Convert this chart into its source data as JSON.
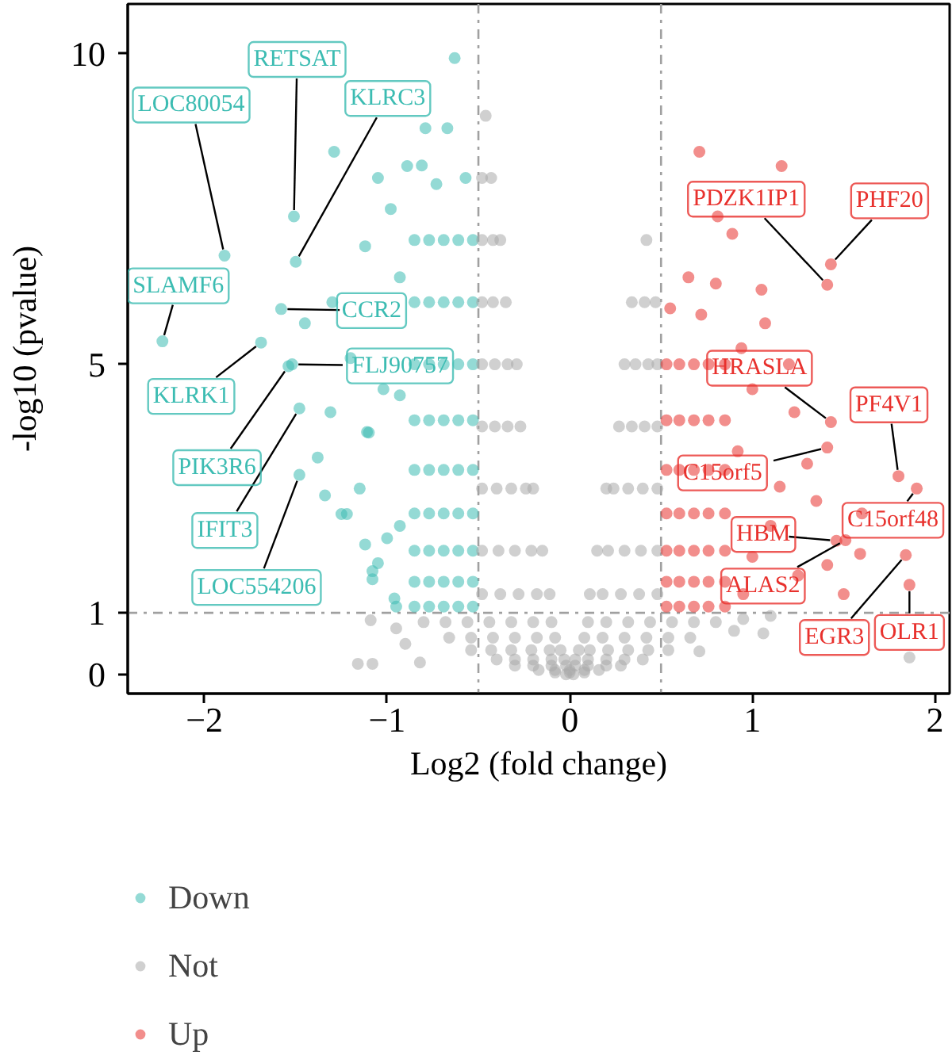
{
  "chart_data": {
    "type": "scatter",
    "xlabel": "Log2 (fold change)",
    "ylabel": "-log10 (pvalue)",
    "xlim": [
      -2.42,
      2.08
    ],
    "xticks": [
      -2,
      -1,
      0,
      1,
      2
    ],
    "ylim": [
      -0.3,
      10.8
    ],
    "yticks": [
      0,
      1,
      5,
      10
    ],
    "marker": "circle",
    "legend": "bottom left",
    "ref_lines": [
      {
        "axis": "x",
        "value": -0.5,
        "color": "#a0a0a0",
        "line_style": "dashdot"
      },
      {
        "axis": "x",
        "value": 0.5,
        "color": "#a0a0a0",
        "line_style": "dashdot"
      },
      {
        "axis": "y",
        "value": 1,
        "color": "#a0a0a0",
        "line_style": "dashdot"
      }
    ],
    "series": [
      {
        "name": "Down",
        "color": "#3cbcb2",
        "x": [
          -1.89,
          -1.58,
          -1.51,
          -1.5,
          -1.69,
          -2.23,
          -1.52,
          -1.54,
          -1.48,
          -1.48,
          -1.29,
          -1.05,
          -1.45,
          -1.31,
          -1.22,
          -1.08,
          -0.96,
          -0.63,
          -0.79,
          -0.67,
          -0.89,
          -1.12,
          -1.2,
          -1.1,
          -1.15,
          -1.0,
          -1.3,
          -1.02,
          -1.12,
          -0.98,
          -1.38,
          -1.05,
          -0.95,
          -1.34,
          -1.25,
          -1.08,
          -1.11,
          -0.53,
          -0.53,
          -0.53,
          -0.53,
          -0.53,
          -0.53,
          -0.53,
          -0.53,
          -0.53,
          -0.61,
          -0.61,
          -0.61,
          -0.61,
          -0.61,
          -0.61,
          -0.61,
          -0.61,
          -0.61,
          -0.69,
          -0.69,
          -0.69,
          -0.69,
          -0.69,
          -0.69,
          -0.69,
          -0.69,
          -0.69,
          -0.77,
          -0.77,
          -0.77,
          -0.77,
          -0.77,
          -0.77,
          -0.77,
          -0.77,
          -0.77,
          -0.85,
          -0.85,
          -0.85,
          -0.85,
          -0.85,
          -0.85,
          -0.85,
          -0.85,
          -0.85,
          -0.93,
          -0.93,
          -0.93,
          -0.57,
          -0.73,
          -0.81
        ],
        "values": [
          6.75,
          5.89,
          7.38,
          6.65,
          5.35,
          5.37,
          5.0,
          4.97,
          4.29,
          3.22,
          8.42,
          8.0,
          5.66,
          4.23,
          2.59,
          1.54,
          1.23,
          9.93,
          8.8,
          8.8,
          8.19,
          6.9,
          5.1,
          3.9,
          3.0,
          2.2,
          6.0,
          4.6,
          2.1,
          7.5,
          3.5,
          1.8,
          1.1,
          2.89,
          2.59,
          1.67,
          3.91,
          1.1,
          1.5,
          2.0,
          2.6,
          3.3,
          4.1,
          5.0,
          6.0,
          7.0,
          1.1,
          1.5,
          2.0,
          2.6,
          3.3,
          4.1,
          5.0,
          6.0,
          7.0,
          1.1,
          1.5,
          2.0,
          2.6,
          3.3,
          4.1,
          5.0,
          6.0,
          7.0,
          1.1,
          1.5,
          2.0,
          2.6,
          3.3,
          4.1,
          5.0,
          6.0,
          7.0,
          1.1,
          1.5,
          2.0,
          2.6,
          3.3,
          4.1,
          5.0,
          6.0,
          7.0,
          2.4,
          4.5,
          6.4,
          8.0,
          7.9,
          8.2
        ]
      },
      {
        "name": "Not",
        "color": "#a9a9a9",
        "x": [
          -0.02,
          0.02,
          -0.08,
          0,
          0.08,
          -0.17,
          -0.08,
          0,
          0.08,
          0.16,
          -0.3,
          -0.2,
          -0.1,
          -0.02,
          0.03,
          0.1,
          0.2,
          0.28,
          -0.4,
          -0.3,
          -0.2,
          -0.1,
          -0.03,
          0.03,
          0.1,
          0.2,
          0.3,
          0.4,
          -0.54,
          -0.43,
          -0.32,
          -0.21,
          -0.11,
          -0.05,
          0.05,
          0.11,
          0.21,
          0.32,
          0.43,
          0.54,
          -0.66,
          -0.54,
          -0.42,
          -0.3,
          -0.18,
          -0.08,
          0.08,
          0.18,
          0.3,
          0.42,
          0.54,
          0.66,
          -0.8,
          -0.68,
          -0.56,
          -0.44,
          -0.32,
          -0.2,
          -0.1,
          0.1,
          0.2,
          0.32,
          0.44,
          0.56,
          0.68,
          0.8,
          -1.09,
          -0.95,
          -1.16,
          -1.08,
          -0.82,
          -0.9,
          0.9,
          1.06,
          0.95,
          1.86,
          1.1,
          0.71,
          -0.48,
          -0.38,
          -0.28,
          -0.18,
          -0.11,
          0.11,
          0.18,
          0.28,
          0.38,
          0.48,
          -0.48,
          -0.39,
          -0.3,
          -0.21,
          -0.15,
          0.15,
          0.21,
          0.3,
          0.39,
          0.48,
          -0.48,
          -0.4,
          -0.32,
          -0.24,
          -0.2,
          0.2,
          0.24,
          0.32,
          0.4,
          0.48,
          -0.48,
          -0.41,
          -0.34,
          -0.27,
          0.27,
          0.34,
          0.41,
          0.48,
          -0.48,
          -0.41,
          -0.34,
          -0.29,
          0.3,
          0.36,
          0.43,
          0.48,
          -0.48,
          -0.42,
          -0.35,
          0.34,
          0.41,
          0.47,
          -0.48,
          -0.42,
          -0.38,
          0.42,
          -0.48,
          -0.43,
          -0.46
        ],
        "values": [
          0.01,
          0.01,
          0.04,
          0.04,
          0.04,
          0.08,
          0.08,
          0.08,
          0.08,
          0.08,
          0.15,
          0.15,
          0.15,
          0.15,
          0.15,
          0.15,
          0.15,
          0.15,
          0.25,
          0.25,
          0.25,
          0.25,
          0.25,
          0.25,
          0.25,
          0.25,
          0.25,
          0.25,
          0.4,
          0.4,
          0.4,
          0.4,
          0.4,
          0.4,
          0.4,
          0.4,
          0.4,
          0.4,
          0.4,
          0.4,
          0.6,
          0.6,
          0.6,
          0.6,
          0.6,
          0.6,
          0.6,
          0.6,
          0.6,
          0.6,
          0.6,
          0.6,
          0.85,
          0.85,
          0.85,
          0.85,
          0.85,
          0.85,
          0.85,
          0.85,
          0.85,
          0.85,
          0.85,
          0.85,
          0.85,
          0.85,
          0.88,
          0.75,
          0.18,
          0.18,
          0.2,
          0.5,
          0.71,
          0.67,
          0.9,
          0.28,
          0.95,
          0.38,
          1.3,
          1.3,
          1.3,
          1.3,
          1.3,
          1.3,
          1.3,
          1.3,
          1.3,
          1.3,
          2,
          2,
          2,
          2,
          2,
          2,
          2,
          2,
          2,
          2,
          3,
          3,
          3,
          3,
          3,
          3,
          3,
          3,
          3,
          3,
          4,
          4,
          4,
          4,
          4,
          4,
          4,
          4,
          5,
          5,
          5,
          5,
          5,
          5,
          5,
          5,
          6,
          6,
          6,
          6,
          6,
          6,
          7,
          7,
          7,
          7,
          8,
          8,
          9
        ]
      },
      {
        "name": "Up",
        "color": "#e8312d",
        "x": [
          1.43,
          1.41,
          1.43,
          1.41,
          1.8,
          1.9,
          1.46,
          1.51,
          1.84,
          1.86,
          0.71,
          1.16,
          0.81,
          0.89,
          1.07,
          0.94,
          1.23,
          1.15,
          1.59,
          1.41,
          1.0,
          1.3,
          1.1,
          1.25,
          0.95,
          1.35,
          1.05,
          1.2,
          0.92,
          1.6,
          1.5,
          1.0,
          0.8,
          0.53,
          0.53,
          0.53,
          0.53,
          0.53,
          0.53,
          0.53,
          0.6,
          0.6,
          0.6,
          0.6,
          0.6,
          0.6,
          0.6,
          0.68,
          0.68,
          0.68,
          0.68,
          0.68,
          0.68,
          0.68,
          0.76,
          0.76,
          0.76,
          0.76,
          0.76,
          0.76,
          0.76,
          0.85,
          0.85,
          0.85,
          0.85,
          0.85,
          0.85,
          0.85,
          0.55,
          0.65,
          0.72
        ],
        "values": [
          6.61,
          6.28,
          4.07,
          3.66,
          3.2,
          3.0,
          2.16,
          2.17,
          1.93,
          1.45,
          8.42,
          8.19,
          7.38,
          7.1,
          5.66,
          5.26,
          4.23,
          3.03,
          1.95,
          1.77,
          4.6,
          3.4,
          2.4,
          1.6,
          1.3,
          2.8,
          6.2,
          5.0,
          3.6,
          2.6,
          1.3,
          1.9,
          6.3,
          1.1,
          1.5,
          2.0,
          2.6,
          3.3,
          4.1,
          5.0,
          1.1,
          1.5,
          2.0,
          2.6,
          3.3,
          4.1,
          5.0,
          1.1,
          1.5,
          2.0,
          2.6,
          3.3,
          4.1,
          5.0,
          1.1,
          1.5,
          2.0,
          2.6,
          3.3,
          4.1,
          5.0,
          1.1,
          1.5,
          2.0,
          2.6,
          3.3,
          4.1,
          5.0,
          5.9,
          6.4,
          5.8
        ]
      }
    ],
    "annotations": [
      {
        "text": "LOC80054",
        "x": -1.89,
        "y": 6.75
      },
      {
        "text": "RETSAT",
        "x": -1.51,
        "y": 7.38
      },
      {
        "text": "CCR2",
        "x": -1.58,
        "y": 5.89
      },
      {
        "text": "KLRC3",
        "x": -1.5,
        "y": 6.65
      },
      {
        "text": "KLRK1",
        "x": -1.69,
        "y": 5.35
      },
      {
        "text": "SLAMF6",
        "x": -2.23,
        "y": 5.37
      },
      {
        "text": "FLJ90757",
        "x": -1.52,
        "y": 5.0
      },
      {
        "text": "PIK3R6",
        "x": -1.54,
        "y": 4.97
      },
      {
        "text": "IFIT3",
        "x": -1.48,
        "y": 4.29
      },
      {
        "text": "LOC554206",
        "x": -1.48,
        "y": 3.22
      },
      {
        "text": "PHF20",
        "x": 1.43,
        "y": 6.61
      },
      {
        "text": "PDZK1IP1",
        "x": 1.41,
        "y": 6.28
      },
      {
        "text": "HRASLA",
        "x": 1.43,
        "y": 4.07
      },
      {
        "text": "C15orf5",
        "x": 1.41,
        "y": 3.66
      },
      {
        "text": "PF4V1",
        "x": 1.8,
        "y": 3.2
      },
      {
        "text": "C15orf48",
        "x": 1.9,
        "y": 3.0
      },
      {
        "text": "HBM",
        "x": 1.46,
        "y": 2.16
      },
      {
        "text": "EGR3",
        "x": 1.84,
        "y": 1.93
      },
      {
        "text": "ALAS2",
        "x": 1.51,
        "y": 2.17
      },
      {
        "text": "OLR1",
        "x": 1.86,
        "y": 1.45
      }
    ]
  }
}
